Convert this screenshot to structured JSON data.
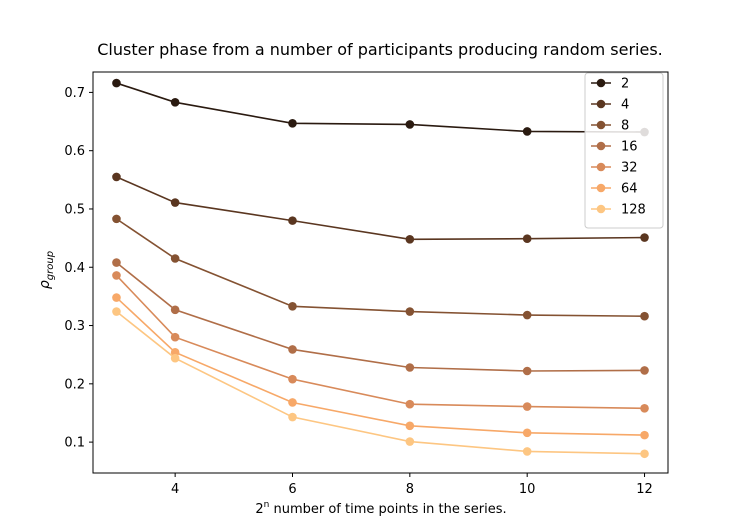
{
  "chart_data": {
    "type": "line",
    "title": "Cluster phase from a number of participants producing random series.",
    "xlabel_pre": "2",
    "xlabel_sup": "n",
    "xlabel_post": " number of time points in the series.",
    "ylabel_main": "ρ",
    "ylabel_sub": "group",
    "x": [
      3,
      4,
      6,
      8,
      10,
      12
    ],
    "xlim": [
      2.6,
      12.4
    ],
    "ylim": [
      0.047,
      0.735
    ],
    "xticks": [
      4,
      6,
      8,
      10,
      12
    ],
    "yticks": [
      0.1,
      0.2,
      0.3,
      0.4,
      0.5,
      0.6,
      0.7
    ],
    "ytick_labels": [
      "0.1",
      "0.2",
      "0.3",
      "0.4",
      "0.5",
      "0.6",
      "0.7"
    ],
    "legend_position": "upper-right",
    "series": [
      {
        "name": "2",
        "color": "#2a1a10",
        "values": [
          0.716,
          0.683,
          0.647,
          0.645,
          0.633,
          0.632
        ]
      },
      {
        "name": "4",
        "color": "#5a3620",
        "values": [
          0.555,
          0.511,
          0.48,
          0.448,
          0.449,
          0.451
        ]
      },
      {
        "name": "8",
        "color": "#845232",
        "values": [
          0.483,
          0.415,
          0.333,
          0.324,
          0.318,
          0.316
        ]
      },
      {
        "name": "16",
        "color": "#b06e48",
        "values": [
          0.408,
          0.327,
          0.259,
          0.228,
          0.222,
          0.223
        ]
      },
      {
        "name": "32",
        "color": "#d88a5a",
        "values": [
          0.386,
          0.28,
          0.208,
          0.165,
          0.161,
          0.158
        ]
      },
      {
        "name": "64",
        "color": "#f7a868",
        "values": [
          0.348,
          0.254,
          0.168,
          0.128,
          0.116,
          0.112
        ]
      },
      {
        "name": "128",
        "color": "#fdc682",
        "values": [
          0.324,
          0.244,
          0.143,
          0.101,
          0.084,
          0.08
        ]
      }
    ]
  }
}
